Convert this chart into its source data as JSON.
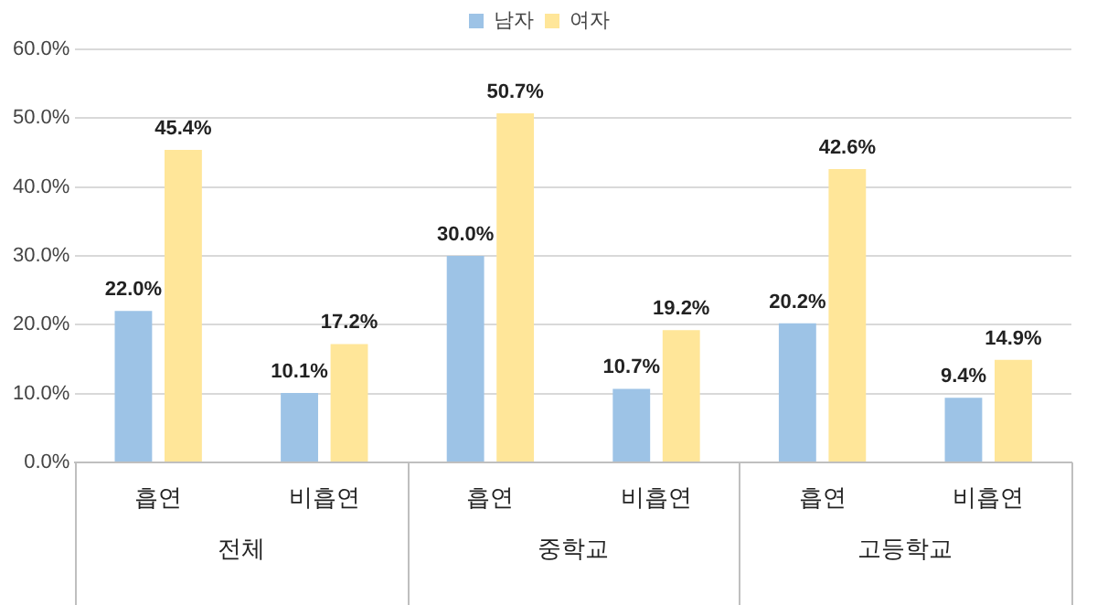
{
  "chart_data": {
    "type": "bar",
    "categories": [
      "흡연",
      "비흡연",
      "흡연",
      "비흡연",
      "흡연",
      "비흡연"
    ],
    "series": [
      {
        "name": "남자",
        "color": "#9dc3e6",
        "values": [
          22.0,
          10.1,
          30.0,
          10.7,
          20.2,
          9.4
        ],
        "value_labels": [
          "22.0%",
          "10.1%",
          "30.0%",
          "10.7%",
          "20.2%",
          "9.4%"
        ]
      },
      {
        "name": "여자",
        "color": "#ffe699",
        "values": [
          45.4,
          17.2,
          50.7,
          19.2,
          42.6,
          14.9
        ],
        "value_labels": [
          "45.4%",
          "17.2%",
          "50.7%",
          "19.2%",
          "42.6%",
          "14.9%"
        ]
      }
    ],
    "annotations": [
      "전체",
      "중학교",
      "고등학교"
    ],
    "ylim": [
      0,
      60
    ],
    "yticks": [
      {
        "value": 0,
        "label": "0.0%"
      },
      {
        "value": 10,
        "label": "10.0%"
      },
      {
        "value": 20,
        "label": "20.0%"
      },
      {
        "value": 30,
        "label": "30.0%"
      },
      {
        "value": 40,
        "label": "40.0%"
      },
      {
        "value": 50,
        "label": "50.0%"
      },
      {
        "value": 60,
        "label": "60.0%"
      }
    ],
    "grid": "y",
    "legend": "top"
  }
}
